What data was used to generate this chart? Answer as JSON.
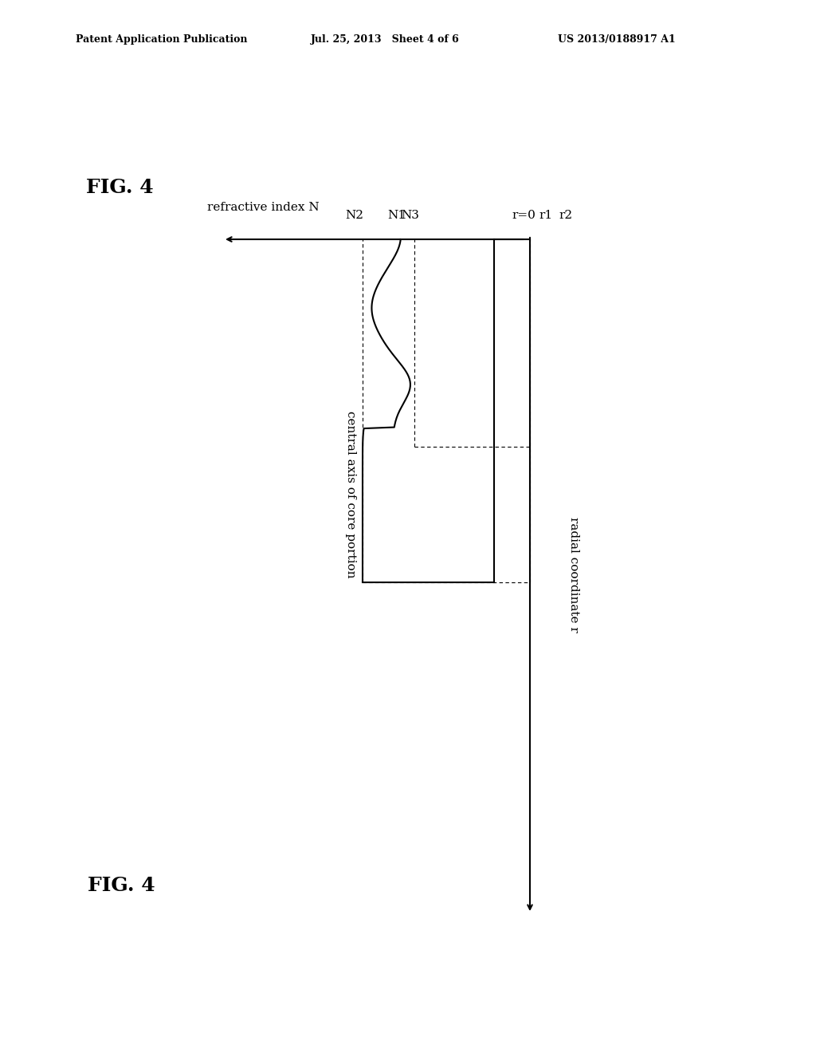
{
  "fig_width": 10.24,
  "fig_height": 13.2,
  "bg_color": "#ffffff",
  "header_left": "Patent Application Publication",
  "header_center": "Jul. 25, 2013   Sheet 4 of 6",
  "header_right": "US 2013/0188917 A1",
  "fig_label": "FIG. 4",
  "ylabel": "refractive index N",
  "xlabel": "radial coordinate r",
  "y_axis_label_rotated": "central axis of core portion",
  "N1_label": "N1",
  "N2_label": "N2",
  "N3_label": "N3",
  "r0_label": "r=0",
  "r1_label": "r1",
  "r2_label": "r2"
}
